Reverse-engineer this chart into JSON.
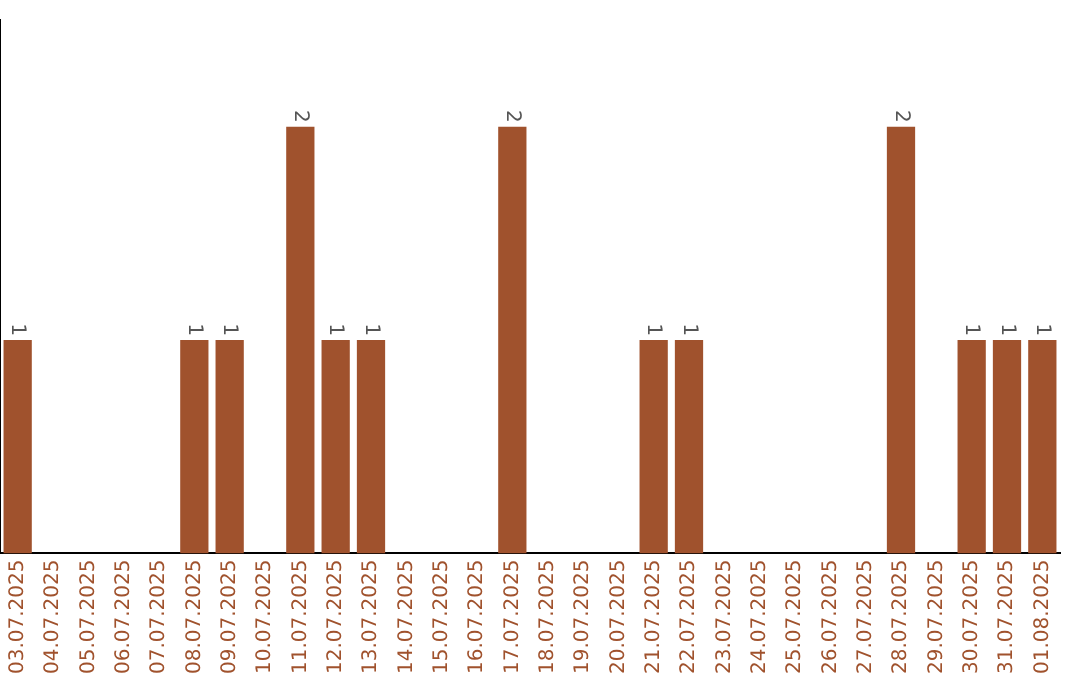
{
  "chart_data": {
    "type": "bar",
    "categories": [
      "03.07.2025",
      "04.07.2025",
      "05.07.2025",
      "06.07.2025",
      "07.07.2025",
      "08.07.2025",
      "09.07.2025",
      "10.07.2025",
      "11.07.2025",
      "12.07.2025",
      "13.07.2025",
      "14.07.2025",
      "15.07.2025",
      "16.07.2025",
      "17.07.2025",
      "18.07.2025",
      "19.07.2025",
      "20.07.2025",
      "21.07.2025",
      "22.07.2025",
      "23.07.2025",
      "24.07.2025",
      "25.07.2025",
      "26.07.2025",
      "27.07.2025",
      "28.07.2025",
      "29.07.2025",
      "30.07.2025",
      "31.07.2025",
      "01.08.2025"
    ],
    "values": [
      1,
      0,
      0,
      0,
      0,
      1,
      1,
      0,
      2,
      1,
      1,
      0,
      0,
      0,
      2,
      0,
      0,
      0,
      1,
      1,
      0,
      0,
      0,
      0,
      0,
      2,
      0,
      1,
      1,
      1
    ],
    "value_labels": [
      "1",
      null,
      null,
      null,
      null,
      "1",
      "1",
      null,
      "2",
      "1",
      "1",
      null,
      null,
      null,
      "2",
      null,
      null,
      null,
      "1",
      "1",
      null,
      null,
      null,
      null,
      null,
      "2",
      null,
      "1",
      "1",
      "1"
    ],
    "color": "#a0522d",
    "grid": false,
    "legend": false,
    "tick_labels": "x"
  }
}
